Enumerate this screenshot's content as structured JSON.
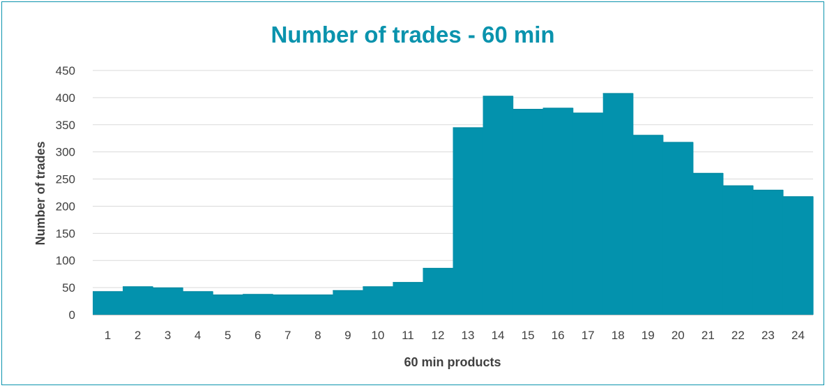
{
  "chart_data": {
    "type": "bar",
    "title": "Number of trades - 60 min",
    "xlabel": "60 min products",
    "ylabel": "Number of trades",
    "categories": [
      "1",
      "2",
      "3",
      "4",
      "5",
      "6",
      "7",
      "8",
      "9",
      "10",
      "11",
      "12",
      "13",
      "14",
      "15",
      "16",
      "17",
      "18",
      "19",
      "20",
      "21",
      "22",
      "23",
      "24"
    ],
    "values": [
      43,
      52,
      50,
      43,
      37,
      38,
      37,
      37,
      45,
      52,
      60,
      86,
      345,
      403,
      379,
      381,
      372,
      408,
      331,
      318,
      261,
      238,
      230,
      218
    ],
    "ylim": [
      0,
      450
    ],
    "yticks": [
      0,
      50,
      100,
      150,
      200,
      250,
      300,
      350,
      400,
      450
    ],
    "grid": true,
    "legend": "none",
    "colors": {
      "bar": "#0392ad",
      "title": "#0a93ad",
      "grid": "#d9d9d9",
      "axis": "#bfbfbf",
      "text": "#404040"
    }
  }
}
